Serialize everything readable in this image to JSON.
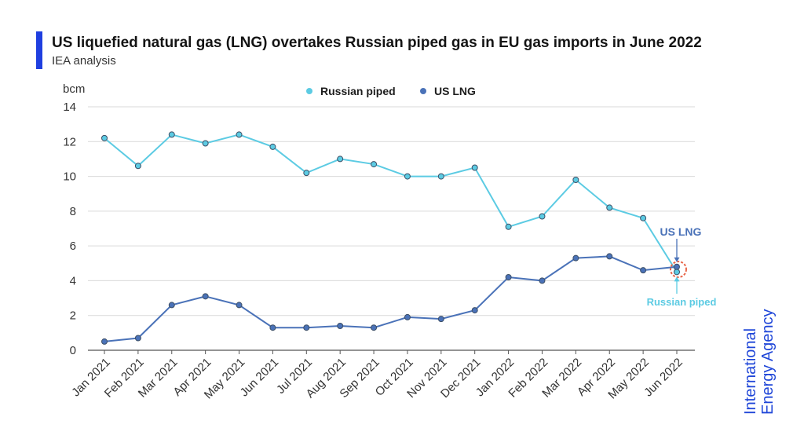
{
  "header": {
    "title": "US liquefied natural gas (LNG) overtakes Russian piped gas in EU gas imports in June 2022",
    "subtitle": "IEA analysis"
  },
  "logo": {
    "text_line1": "International",
    "text_line2": "Energy Agency"
  },
  "colors": {
    "russian": "#5ccbe3",
    "us": "#4a72b8",
    "title_bar": "#1f3fe0",
    "highlight": "#e8664a",
    "grid": "#d9d9d9"
  },
  "chart_data": {
    "type": "line",
    "title": "US liquefied natural gas (LNG) overtakes Russian piped gas in EU gas imports in June 2022",
    "ylabel": "bcm",
    "ylim": [
      0,
      14
    ],
    "yticks": [
      0,
      2,
      4,
      6,
      8,
      10,
      12,
      14
    ],
    "categories": [
      "Jan 2021",
      "Feb 2021",
      "Mar 2021",
      "Apr 2021",
      "May 2021",
      "Jun 2021",
      "Jul 2021",
      "Aug 2021",
      "Sep 2021",
      "Oct 2021",
      "Nov 2021",
      "Dec 2021",
      "Jan 2022",
      "Feb 2022",
      "Mar 2022",
      "Apr 2022",
      "May 2022",
      "Jun 2022"
    ],
    "series": [
      {
        "name": "Russian piped",
        "color": "#5ccbe3",
        "values": [
          12.2,
          10.6,
          12.4,
          11.9,
          12.4,
          11.7,
          10.2,
          11.0,
          10.7,
          10.0,
          10.0,
          10.5,
          7.1,
          7.7,
          9.8,
          8.2,
          7.6,
          4.5
        ]
      },
      {
        "name": "US LNG",
        "color": "#4a72b8",
        "values": [
          0.5,
          0.7,
          2.6,
          3.1,
          2.6,
          1.3,
          1.3,
          1.4,
          1.3,
          1.9,
          1.8,
          2.3,
          4.2,
          4.0,
          5.3,
          5.4,
          4.6,
          4.8
        ]
      }
    ],
    "legend": {
      "position": "top-center",
      "items": [
        "Russian piped",
        "US LNG"
      ]
    },
    "annotations": [
      {
        "text": "US LNG",
        "series": "US LNG",
        "category": "Jun 2022",
        "placement": "above"
      },
      {
        "text": "Russian piped",
        "series": "Russian piped",
        "category": "Jun 2022",
        "placement": "below"
      }
    ],
    "grid": true
  }
}
